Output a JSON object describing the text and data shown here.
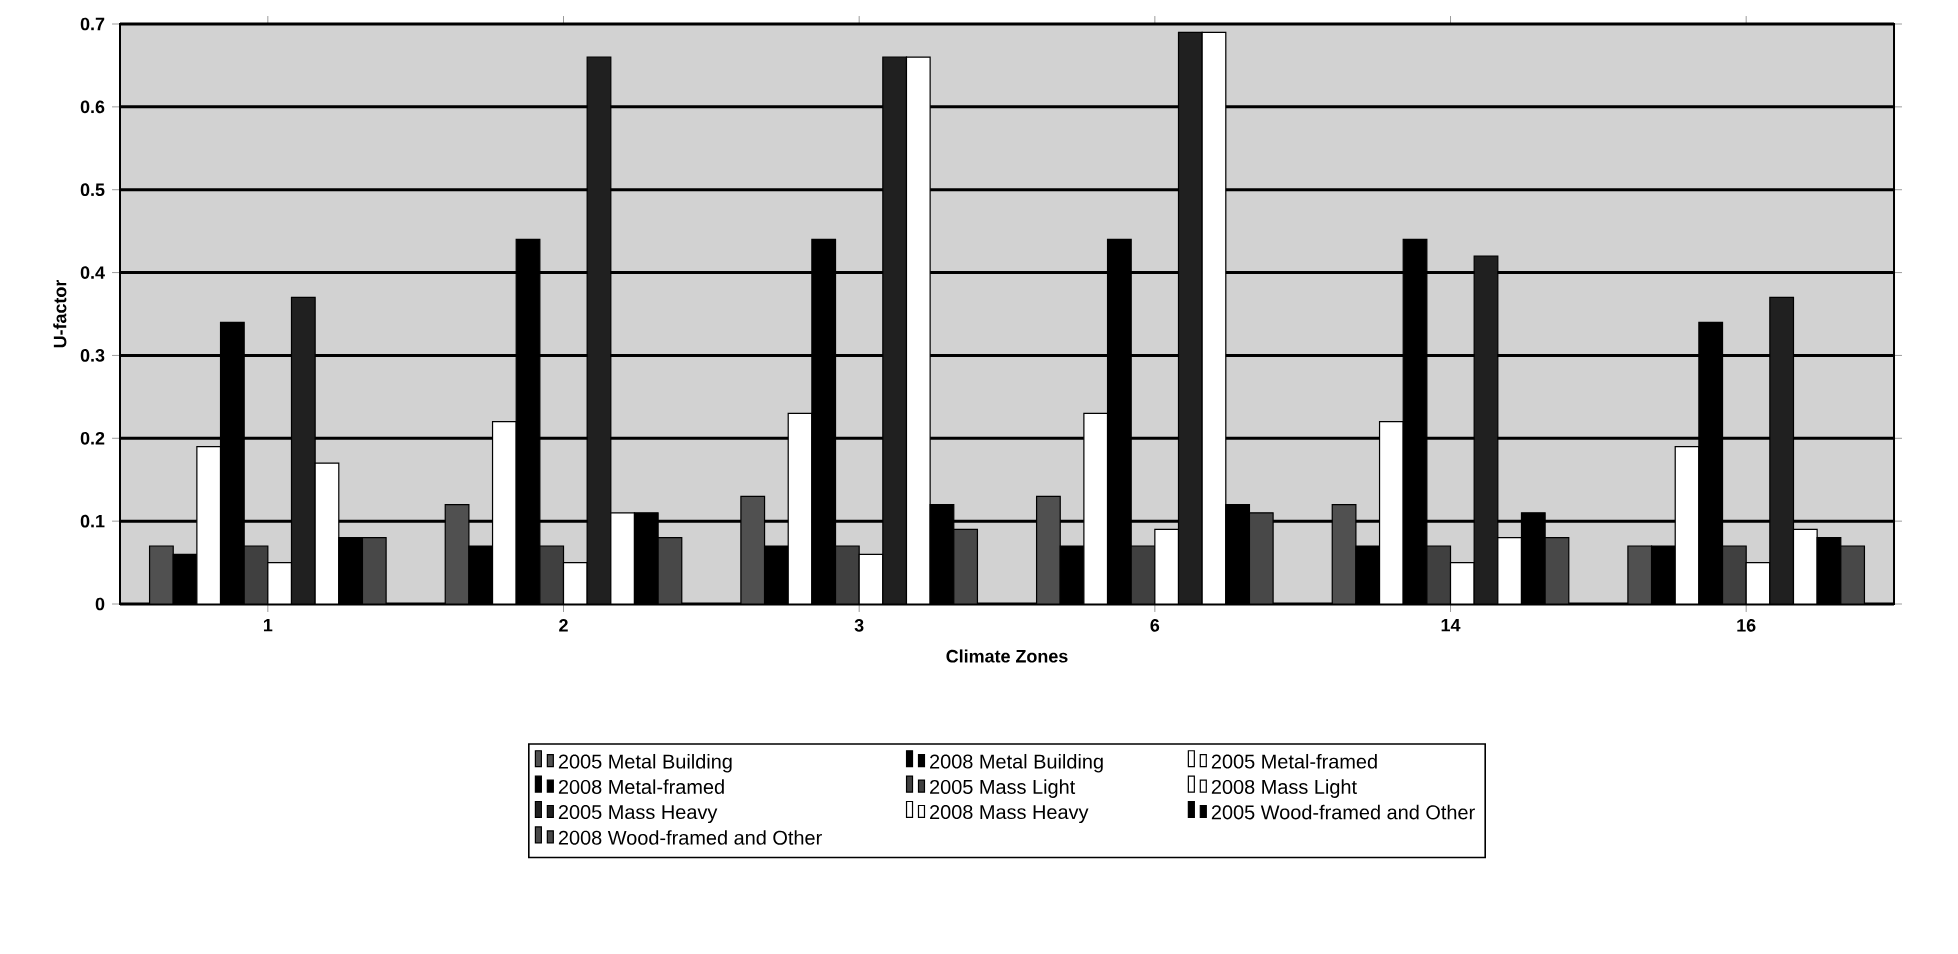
{
  "chart_data": {
    "type": "bar",
    "xlabel": "Climate Zones",
    "ylabel": "U-factor",
    "categories": [
      "1",
      "2",
      "3",
      "6",
      "14",
      "16"
    ],
    "series": [
      {
        "name": "2005 Metal Building",
        "color": "#505050",
        "values": [
          0.07,
          0.12,
          0.13,
          0.13,
          0.12,
          0.07
        ]
      },
      {
        "name": "2008 Metal Building",
        "color": "#000000",
        "values": [
          0.06,
          0.07,
          0.07,
          0.07,
          0.07,
          0.07
        ]
      },
      {
        "name": "2005 Metal-framed",
        "color": "#ffffff",
        "values": [
          0.19,
          0.22,
          0.23,
          0.23,
          0.22,
          0.19
        ]
      },
      {
        "name": "2008 Metal-framed",
        "color": "#000000",
        "values": [
          0.34,
          0.44,
          0.44,
          0.44,
          0.44,
          0.34
        ]
      },
      {
        "name": "2005 Mass Light",
        "color": "#404040",
        "values": [
          0.07,
          0.07,
          0.07,
          0.07,
          0.07,
          0.07
        ]
      },
      {
        "name": "2008 Mass Light",
        "color": "#ffffff",
        "values": [
          0.05,
          0.05,
          0.06,
          0.09,
          0.05,
          0.05
        ]
      },
      {
        "name": "2005 Mass Heavy",
        "color": "#202020",
        "values": [
          0.37,
          0.66,
          0.66,
          0.69,
          0.42,
          0.37
        ]
      },
      {
        "name": "2008 Mass Heavy",
        "color": "#ffffff",
        "values": [
          0.17,
          0.11,
          0.66,
          0.69,
          0.08,
          0.09
        ]
      },
      {
        "name": "2005 Wood-framed and Other",
        "color": "#000000",
        "values": [
          0.08,
          0.11,
          0.12,
          0.12,
          0.11,
          0.08
        ]
      },
      {
        "name": "2008 Wood-framed and Other",
        "color": "#484848",
        "values": [
          0.08,
          0.08,
          0.09,
          0.11,
          0.08,
          0.07
        ]
      }
    ],
    "ylim": [
      0,
      0.7
    ],
    "yticks": [
      0,
      0.1,
      0.2,
      0.3,
      0.4,
      0.5,
      0.6,
      0.7
    ],
    "grid": "y",
    "legend": "bottom"
  }
}
